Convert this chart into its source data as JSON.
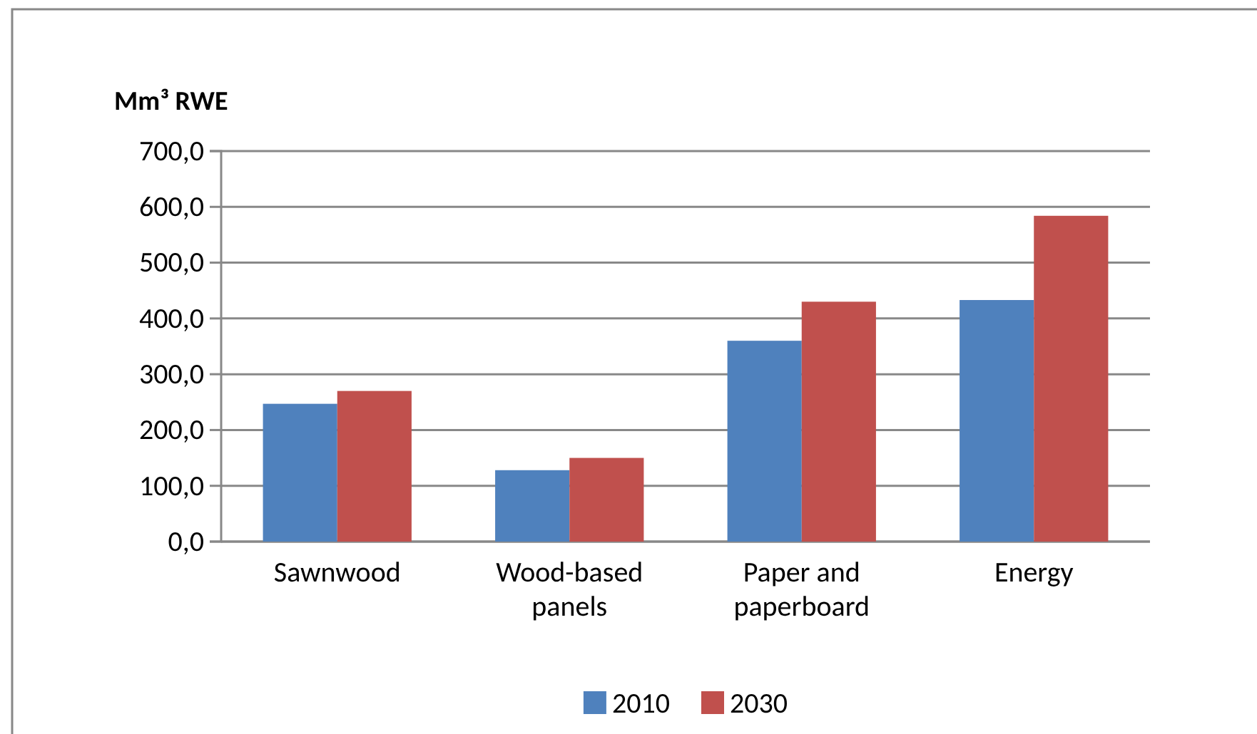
{
  "chart_data": {
    "type": "bar",
    "ylabel": "Mm³ RWE",
    "categories": [
      "Sawnwood",
      "Wood-based panels",
      "Paper and paperboard",
      "Energy"
    ],
    "series": [
      {
        "name": "2010",
        "color": "#4f81bd",
        "values": [
          247,
          128,
          360,
          433
        ]
      },
      {
        "name": "2030",
        "color": "#c0504d",
        "values": [
          270,
          150,
          430,
          584
        ]
      }
    ],
    "ylim": [
      0,
      700
    ],
    "yticks": [
      {
        "value": 0,
        "label": "0,0"
      },
      {
        "value": 100,
        "label": "100,0"
      },
      {
        "value": 200,
        "label": "200,0"
      },
      {
        "value": 300,
        "label": "300,0"
      },
      {
        "value": 400,
        "label": "400,0"
      },
      {
        "value": 500,
        "label": "500,0"
      },
      {
        "value": 600,
        "label": "600,0"
      },
      {
        "value": 700,
        "label": "700,0"
      }
    ],
    "grid": "y",
    "legend": "bottom"
  }
}
